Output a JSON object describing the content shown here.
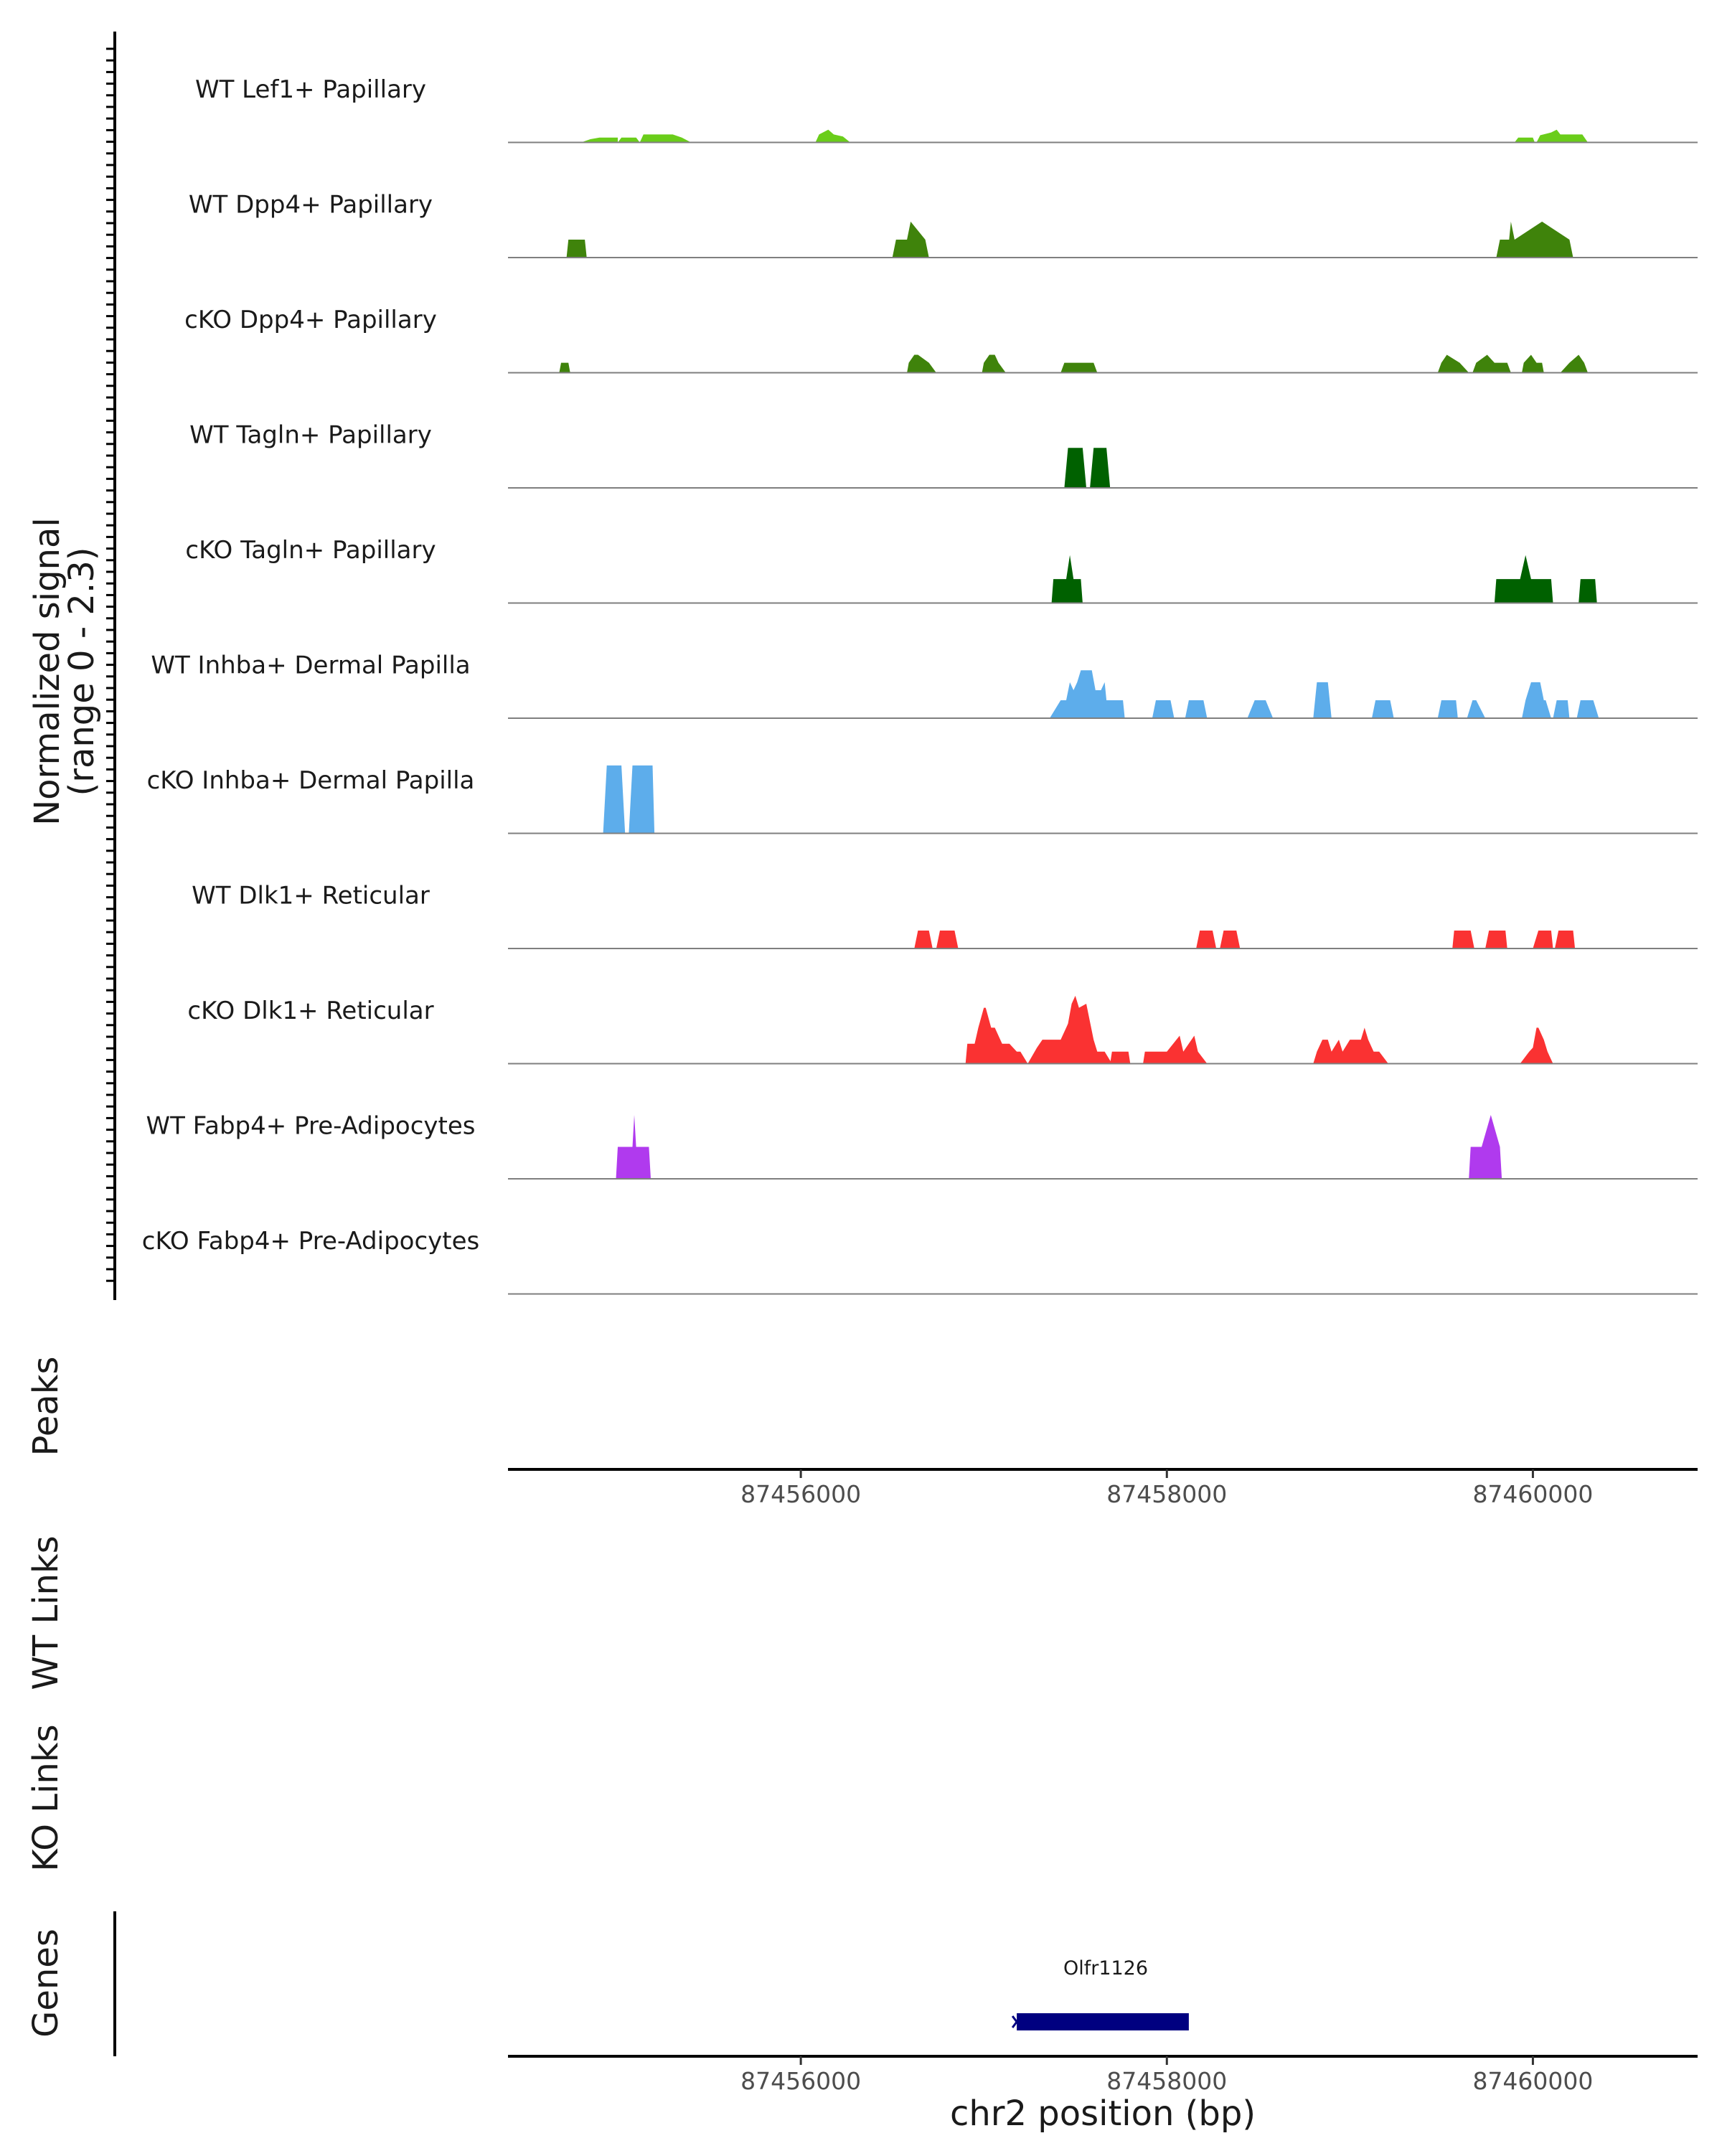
{
  "chart_data": {
    "type": "area",
    "description_of_axes": "genome coverage tracks",
    "y_axis_title_line1": "Normalized signal",
    "y_axis_title_line2": "(range 0 - 2.3)",
    "ylim": [
      0,
      2.3
    ],
    "xlim": [
      87454400,
      87460900
    ],
    "x_ticks": [
      87456000,
      87458000,
      87460000
    ],
    "x_tick_labels": [
      "87456000",
      "87458000",
      "87460000"
    ],
    "xlabel": "chr2 position (bp)",
    "tracks": [
      {
        "name": "WT Lef1+ Papillary",
        "color": "#6ACD1A",
        "regions": [
          {
            "x": [
              87454800,
              87454850,
              87454900,
              87455000
            ],
            "y": [
              0,
              0.08,
              0.12,
              0.12
            ]
          },
          {
            "x": [
              87455000,
              87455020,
              87455100,
              87455120
            ],
            "y": [
              0,
              0.12,
              0.12,
              0
            ]
          },
          {
            "x": [
              87455120,
              87455140,
              87455250,
              87455300,
              87455350,
              87455400
            ],
            "y": [
              0,
              0.2,
              0.2,
              0.2,
              0.12,
              0
            ]
          },
          {
            "x": [
              87456080,
              87456100,
              87456150,
              87456180,
              87456230,
              87456270
            ],
            "y": [
              0,
              0.2,
              0.32,
              0.2,
              0.15,
              0
            ]
          },
          {
            "x": [
              87459900,
              87459920,
              87460000,
              87460010
            ],
            "y": [
              0,
              0.12,
              0.12,
              0
            ]
          },
          {
            "x": [
              87460020,
              87460040,
              87460100,
              87460130,
              87460150,
              87460270,
              87460300
            ],
            "y": [
              0,
              0.18,
              0.25,
              0.32,
              0.2,
              0.2,
              0
            ]
          }
        ]
      },
      {
        "name": "WT Dpp4+ Papillary",
        "color": "#3F830B",
        "regions": [
          {
            "x": [
              87454720,
              87454730,
              87454820,
              87454830
            ],
            "y": [
              0,
              0.45,
              0.45,
              0
            ]
          },
          {
            "x": [
              87456500,
              87456520,
              87456580,
              87456600,
              87456680,
              87456700
            ],
            "y": [
              0,
              0.45,
              0.45,
              0.9,
              0.45,
              0
            ]
          },
          {
            "x": [
              87459800,
              87459820,
              87459870,
              87459880,
              87459900,
              87460050,
              87460200,
              87460220
            ],
            "y": [
              0,
              0.45,
              0.45,
              0.9,
              0.45,
              0.9,
              0.45,
              0
            ]
          }
        ]
      },
      {
        "name": "cKO Dpp4+ Papillary",
        "color": "#3F830B",
        "regions": [
          {
            "x": [
              87454680,
              87454690,
              87454730,
              87454740
            ],
            "y": [
              0,
              0.25,
              0.25,
              0
            ]
          },
          {
            "x": [
              87456580,
              87456590,
              87456620,
              87456640,
              87456700,
              87456740
            ],
            "y": [
              0,
              0.25,
              0.45,
              0.45,
              0.25,
              0
            ]
          },
          {
            "x": [
              87456990,
              87457000,
              87457030,
              87457060,
              87457080,
              87457120
            ],
            "y": [
              0,
              0.25,
              0.45,
              0.45,
              0.25,
              0
            ]
          },
          {
            "x": [
              87457420,
              87457440,
              87457600,
              87457620
            ],
            "y": [
              0,
              0.25,
              0.25,
              0
            ]
          },
          {
            "x": [
              87459480,
              87459500,
              87459530,
              87459600,
              87459650
            ],
            "y": [
              0,
              0.25,
              0.45,
              0.25,
              0
            ]
          },
          {
            "x": [
              87459670,
              87459690,
              87459750,
              87459790,
              87459860,
              87459880
            ],
            "y": [
              0,
              0.25,
              0.45,
              0.25,
              0.25,
              0
            ]
          },
          {
            "x": [
              87459940,
              87459950,
              87459990,
              87460020,
              87460050,
              87460060
            ],
            "y": [
              0,
              0.25,
              0.45,
              0.25,
              0.25,
              0
            ]
          },
          {
            "x": [
              87460150,
              87460200,
              87460250,
              87460280,
              87460300
            ],
            "y": [
              0,
              0.25,
              0.45,
              0.25,
              0
            ]
          }
        ]
      },
      {
        "name": "WT Tagln+ Papillary",
        "color": "#006100",
        "regions": [
          {
            "x": [
              87457440,
              87457460,
              87457540,
              87457560
            ],
            "y": [
              0,
              1.0,
              1.0,
              0
            ]
          },
          {
            "x": [
              87457580,
              87457600,
              87457670,
              87457690
            ],
            "y": [
              0,
              1.0,
              1.0,
              0
            ]
          }
        ]
      },
      {
        "name": "cKO Tagln+ Papillary",
        "color": "#006100",
        "regions": [
          {
            "x": [
              87457370,
              87457380,
              87457450,
              87457470,
              87457490,
              87457530,
              87457540
            ],
            "y": [
              0,
              0.6,
              0.6,
              1.2,
              0.6,
              0.6,
              0
            ]
          },
          {
            "x": [
              87459790,
              87459800,
              87459930,
              87459960,
              87459990,
              87460100,
              87460110
            ],
            "y": [
              0,
              0.6,
              0.6,
              1.2,
              0.6,
              0.6,
              0
            ]
          },
          {
            "x": [
              87460250,
              87460260,
              87460340,
              87460350
            ],
            "y": [
              0,
              0.6,
              0.6,
              0
            ]
          }
        ]
      },
      {
        "name": "WT Inhba+ Dermal Papilla",
        "color": "#5DADEB",
        "regions": [
          {
            "x": [
              87457360,
              87457420,
              87457450,
              87457470,
              87457490,
              87457510,
              87457530,
              87457550,
              87457570,
              87457590,
              87457610,
              87457640,
              87457660,
              87457670,
              87457680,
              87457760,
              87457770
            ],
            "y": [
              0,
              0.45,
              0.45,
              0.9,
              0.7,
              0.9,
              1.2,
              1.2,
              1.2,
              1.2,
              0.7,
              0.7,
              0.9,
              0.45,
              0.45,
              0.45,
              0
            ]
          },
          {
            "x": [
              87457920,
              87457940,
              87458020,
              87458040
            ],
            "y": [
              0,
              0.45,
              0.45,
              0
            ]
          },
          {
            "x": [
              87458100,
              87458120,
              87458200,
              87458220
            ],
            "y": [
              0,
              0.45,
              0.45,
              0
            ]
          },
          {
            "x": [
              87458440,
              87458480,
              87458540,
              87458580
            ],
            "y": [
              0,
              0.45,
              0.45,
              0
            ]
          },
          {
            "x": [
              87458800,
              87458820,
              87458880,
              87458900
            ],
            "y": [
              0,
              0.9,
              0.9,
              0
            ]
          },
          {
            "x": [
              87459120,
              87459140,
              87459220,
              87459240
            ],
            "y": [
              0,
              0.45,
              0.45,
              0
            ]
          },
          {
            "x": [
              87459480,
              87459500,
              87459580,
              87459590
            ],
            "y": [
              0,
              0.45,
              0.45,
              0
            ]
          },
          {
            "x": [
              87459640,
              87459670,
              87459690,
              87459740
            ],
            "y": [
              0,
              0.45,
              0.45,
              0
            ]
          },
          {
            "x": [
              87459940,
              87459960,
              87459990,
              87460000,
              87460040,
              87460060,
              87460070,
              87460100
            ],
            "y": [
              0,
              0.45,
              0.9,
              0.9,
              0.9,
              0.45,
              0.45,
              0
            ]
          },
          {
            "x": [
              87460110,
              87460130,
              87460190,
              87460200
            ],
            "y": [
              0,
              0.45,
              0.45,
              0
            ]
          },
          {
            "x": [
              87460240,
              87460260,
              87460330,
              87460360
            ],
            "y": [
              0,
              0.45,
              0.45,
              0
            ]
          }
        ]
      },
      {
        "name": "cKO Inhba+ Dermal Papilla",
        "color": "#5DADEB",
        "regions": [
          {
            "x": [
              87454920,
              87454940,
              87455020,
              87455040
            ],
            "y": [
              0,
              1.7,
              1.7,
              0
            ]
          },
          {
            "x": [
              87455060,
              87455080,
              87455190,
              87455200
            ],
            "y": [
              0,
              1.7,
              1.7,
              0
            ]
          }
        ]
      },
      {
        "name": "WT Dlk1+ Reticular",
        "color": "#FA3232",
        "regions": [
          {
            "x": [
              87456620,
              87456640,
              87456700,
              87456720
            ],
            "y": [
              0,
              0.45,
              0.45,
              0
            ]
          },
          {
            "x": [
              87456740,
              87456760,
              87456840,
              87456860
            ],
            "y": [
              0,
              0.45,
              0.45,
              0
            ]
          },
          {
            "x": [
              87458160,
              87458180,
              87458250,
              87458270
            ],
            "y": [
              0,
              0.45,
              0.45,
              0
            ]
          },
          {
            "x": [
              87458290,
              87458310,
              87458380,
              87458400
            ],
            "y": [
              0,
              0.45,
              0.45,
              0
            ]
          },
          {
            "x": [
              87459560,
              87459570,
              87459660,
              87459680
            ],
            "y": [
              0,
              0.45,
              0.45,
              0
            ]
          },
          {
            "x": [
              87459740,
              87459760,
              87459850,
              87459860
            ],
            "y": [
              0,
              0.45,
              0.45,
              0
            ]
          },
          {
            "x": [
              87460000,
              87460030,
              87460100,
              87460110
            ],
            "y": [
              0,
              0.45,
              0.45,
              0
            ]
          },
          {
            "x": [
              87460120,
              87460140,
              87460220,
              87460230
            ],
            "y": [
              0,
              0.45,
              0.45,
              0
            ]
          }
        ]
      },
      {
        "name": "cKO Dlk1+ Reticular",
        "color": "#FA3232",
        "regions": [
          {
            "x": [
              87456900,
              87456910,
              87456950,
              87456970,
              87457000,
              87457010,
              87457040,
              87457060,
              87457100,
              87457140,
              87457180,
              87457200,
              87457240
            ],
            "y": [
              0,
              0.5,
              0.5,
              0.9,
              1.4,
              1.4,
              0.9,
              0.9,
              0.5,
              0.5,
              0.3,
              0.3,
              0
            ]
          },
          {
            "x": [
              87457240,
              87457290,
              87457320,
              87457400,
              87457420,
              87457450,
              87457460,
              87457480,
              87457500,
              87457520,
              87457560,
              87457600,
              87457620,
              87457640,
              87457660,
              87457700
            ],
            "y": [
              0,
              0.4,
              0.6,
              0.6,
              0.6,
              0.9,
              1.0,
              1.5,
              1.7,
              1.4,
              1.5,
              0.6,
              0.3,
              0.3,
              0.3,
              0
            ]
          },
          {
            "x": [
              87457690,
              87457700,
              87457790,
              87457800
            ],
            "y": [
              0,
              0.3,
              0.3,
              0
            ]
          },
          {
            "x": [
              87457870,
              87457880,
              87458000,
              87458070,
              87458090,
              87458150,
              87458170,
              87458220
            ],
            "y": [
              0,
              0.3,
              0.3,
              0.7,
              0.3,
              0.7,
              0.3,
              0
            ]
          },
          {
            "x": [
              87458800,
              87458820,
              87458850,
              87458880,
              87458900,
              87458940,
              87458960,
              87459000,
              87459060,
              87459080,
              87459100,
              87459130,
              87459160,
              87459210
            ],
            "y": [
              0,
              0.3,
              0.6,
              0.6,
              0.3,
              0.6,
              0.3,
              0.6,
              0.6,
              0.9,
              0.6,
              0.3,
              0.3,
              0
            ]
          },
          {
            "x": [
              87459930,
              87459980,
              87460000,
              87460020,
              87460030,
              87460060,
              87460080,
              87460110
            ],
            "y": [
              0,
              0.3,
              0.4,
              0.9,
              0.9,
              0.6,
              0.3,
              0
            ]
          }
        ]
      },
      {
        "name": "WT Fabp4+ Pre-Adipocytes",
        "color": "#B03AEE",
        "regions": [
          {
            "x": [
              87454990,
              87455000,
              87455080,
              87455090,
              87455100,
              87455170,
              87455180
            ],
            "y": [
              0,
              0.8,
              0.8,
              1.6,
              0.8,
              0.8,
              0
            ]
          },
          {
            "x": [
              87459650,
              87459660,
              87459720,
              87459770,
              87459820,
              87459830
            ],
            "y": [
              0,
              0.8,
              0.8,
              1.6,
              0.8,
              0
            ]
          }
        ]
      },
      {
        "name": "cKO Fabp4+ Pre-Adipocytes",
        "color": "#B03AEE",
        "regions": []
      }
    ],
    "bottom_panels": [
      {
        "name": "Peaks"
      },
      {
        "name": "WT Links"
      },
      {
        "name": "KO Links"
      },
      {
        "name": "Genes"
      }
    ],
    "genes": [
      {
        "name": "Olfr1126",
        "start": 87457180,
        "end": 87458120,
        "color": "#000080"
      }
    ]
  }
}
